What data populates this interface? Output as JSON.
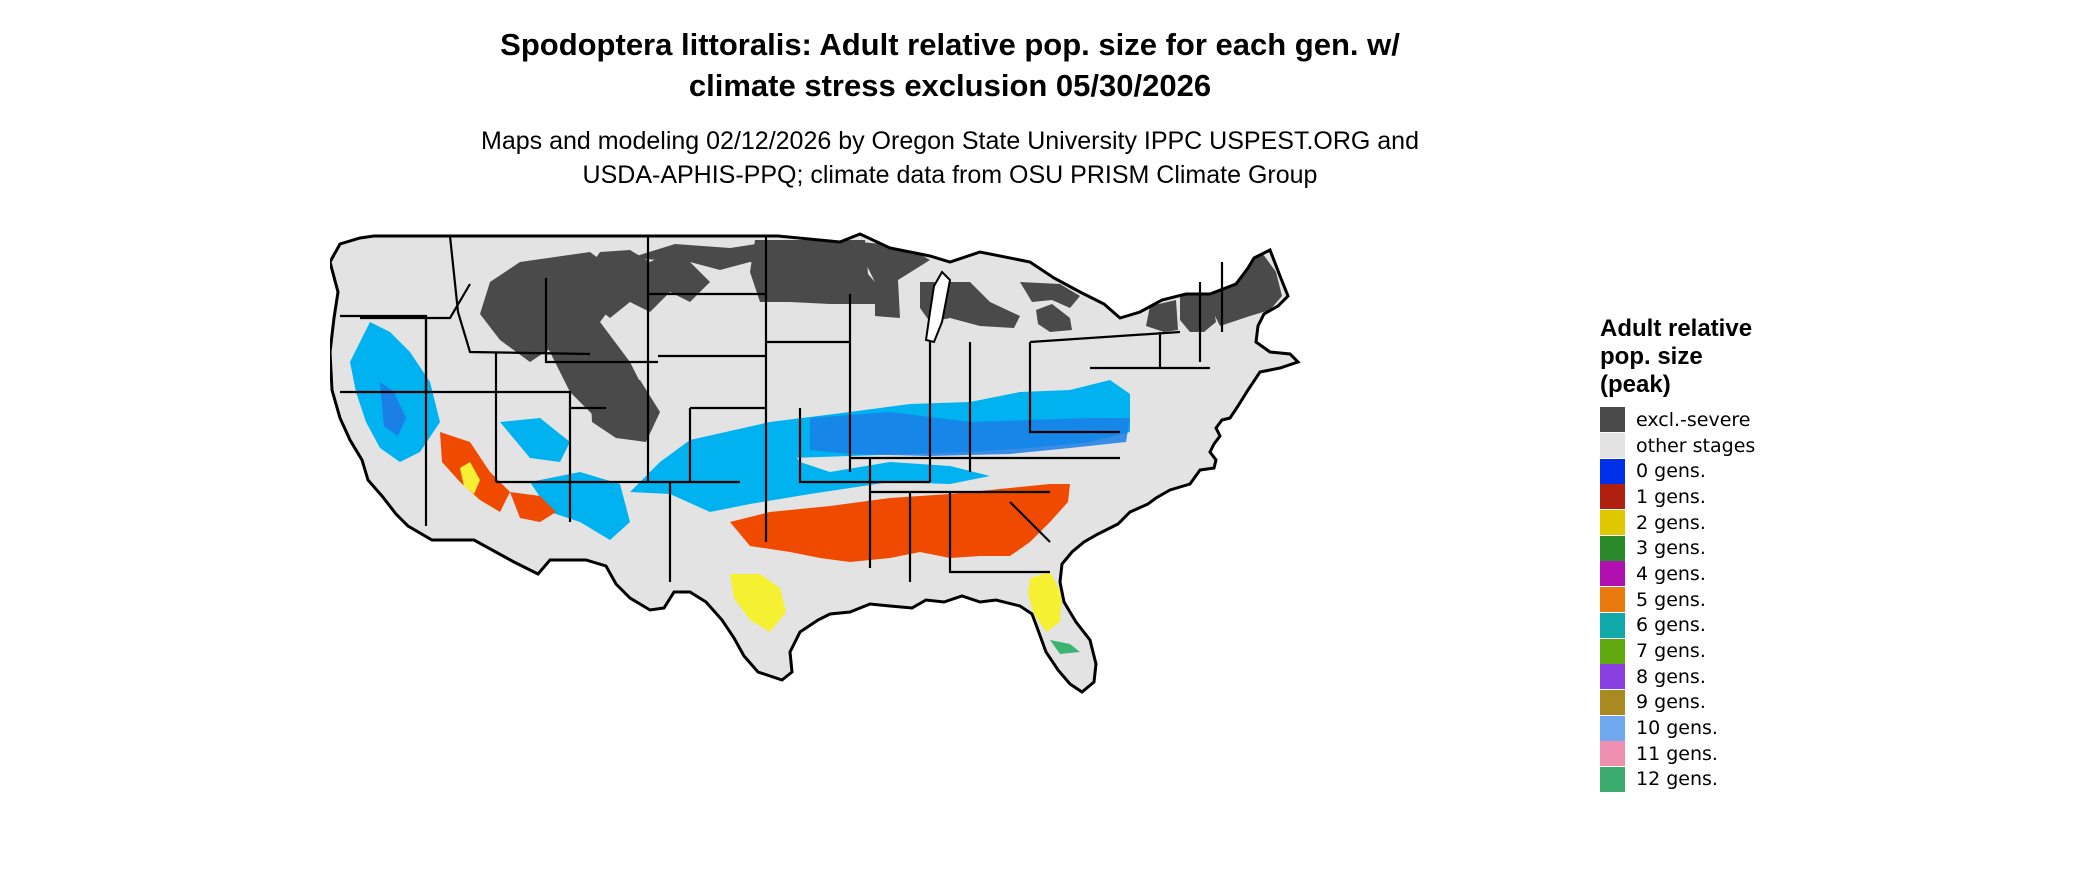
{
  "title": {
    "line1": "Spodoptera littoralis: Adult relative pop. size for each gen. w/",
    "line2": "climate stress exclusion 05/30/2026"
  },
  "subtitle": {
    "line1": "Maps and modeling 02/12/2026 by Oregon State University IPPC USPEST.ORG and",
    "line2": "USDA-APHIS-PPQ; climate data from OSU PRISM Climate Group"
  },
  "map": {
    "region": "contiguous United States",
    "colors": {
      "land_background": "#e3e3e3",
      "borders": "#000000",
      "excluded": "#4a4a4a",
      "zero_gens": "#00b2f0",
      "zero_gens_dense": "#1a7fe6",
      "one_gen": "#f04a00",
      "two_gens": "#f5f032",
      "twelve_gens": "#3cb371"
    }
  },
  "legend": {
    "title_lines": [
      "Adult relative",
      "pop. size",
      "(peak)"
    ],
    "items": [
      {
        "label": "excl.-severe",
        "color": "#4a4a4a"
      },
      {
        "label": "other stages",
        "color": "#e3e3e3"
      },
      {
        "label": "0 gens.",
        "color": "#0030e8"
      },
      {
        "label": "1 gens.",
        "color": "#b0200e"
      },
      {
        "label": "2 gens.",
        "color": "#e0c800"
      },
      {
        "label": "3 gens.",
        "color": "#2a8a2a"
      },
      {
        "label": "4 gens.",
        "color": "#b010b0"
      },
      {
        "label": "5 gens.",
        "color": "#e87a10"
      },
      {
        "label": "6 gens.",
        "color": "#10a8a8"
      },
      {
        "label": "7 gens.",
        "color": "#60a810"
      },
      {
        "label": "8 gens.",
        "color": "#8a40e0"
      },
      {
        "label": "9 gens.",
        "color": "#a88a20"
      },
      {
        "label": "10 gens.",
        "color": "#70a8f0"
      },
      {
        "label": "11 gens.",
        "color": "#f090b0"
      },
      {
        "label": "12 gens.",
        "color": "#3cab6e"
      }
    ]
  }
}
